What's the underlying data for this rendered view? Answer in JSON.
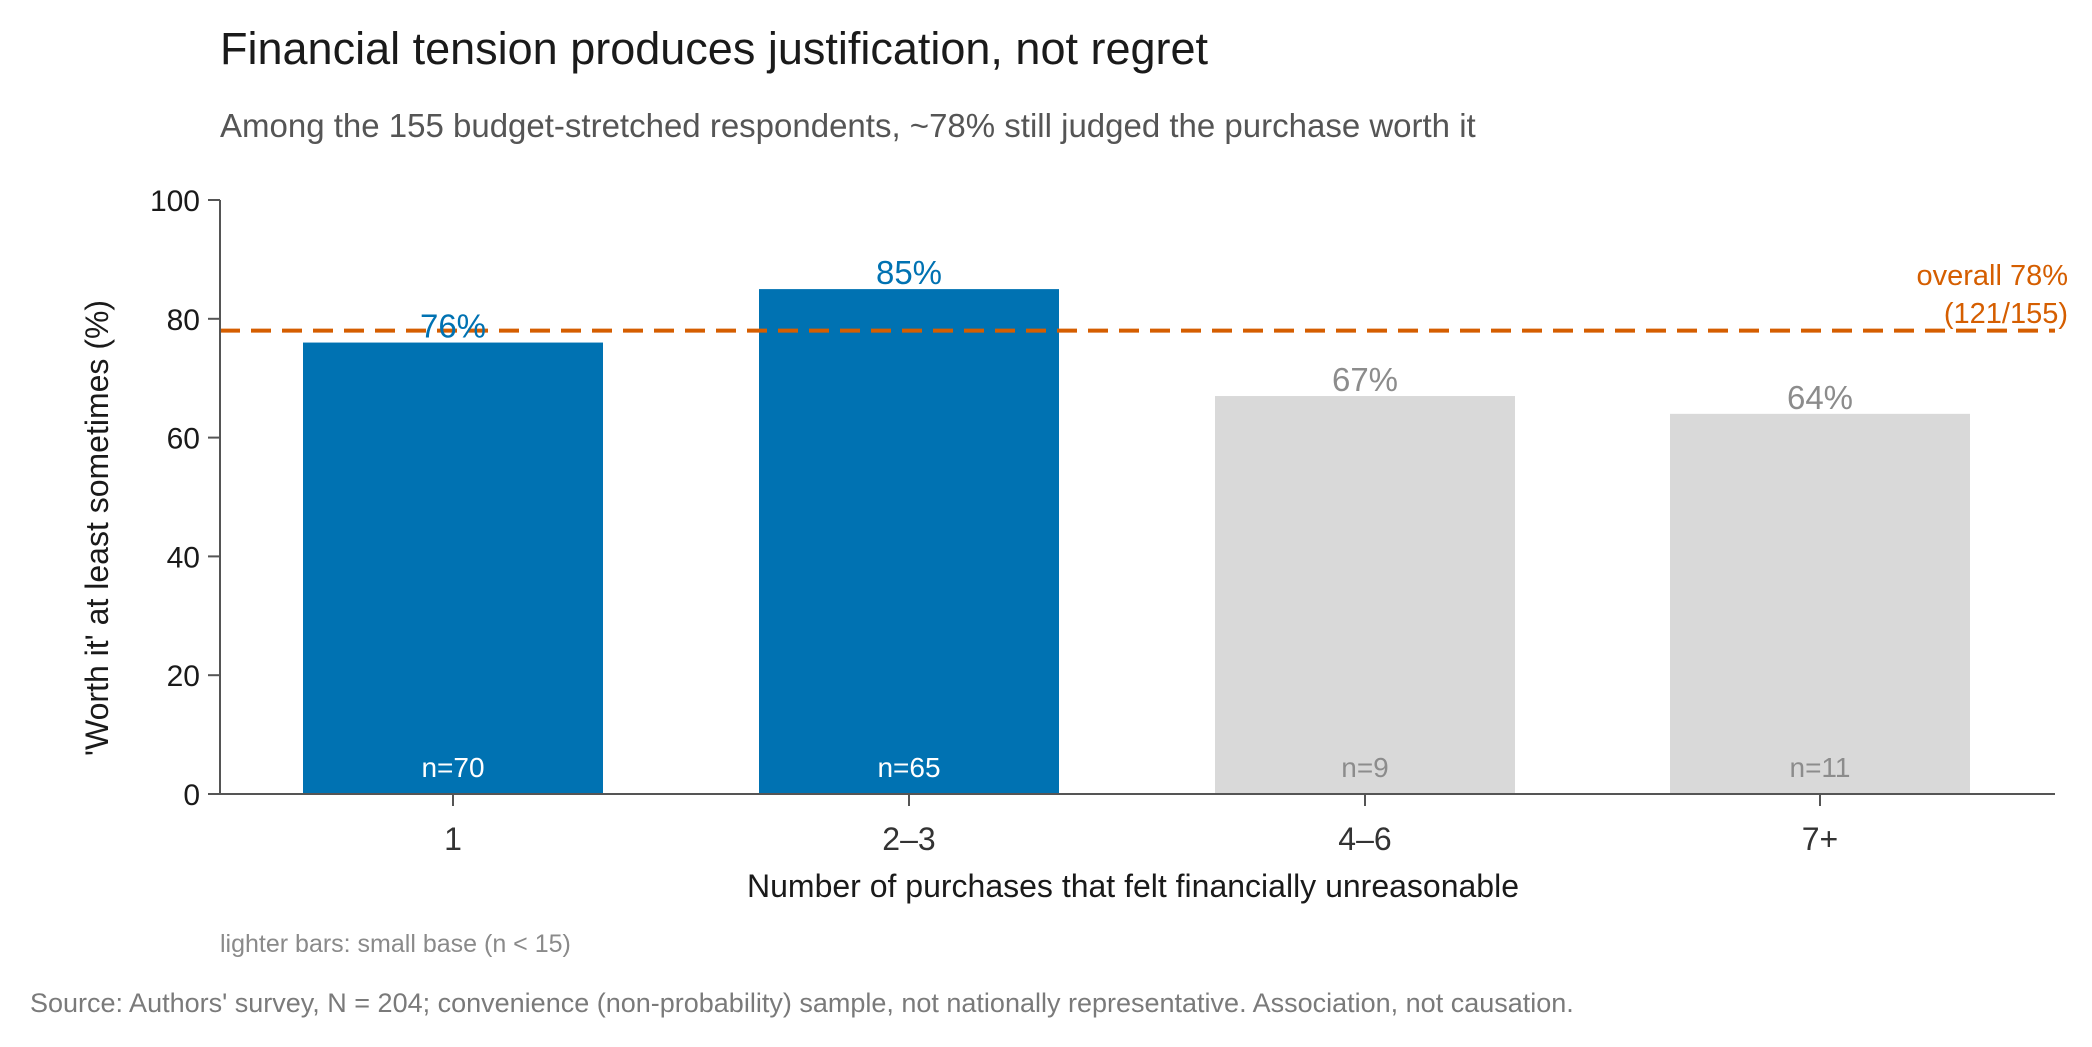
{
  "colors": {
    "highlight": "#0072b2",
    "muted": "#d9d9d9",
    "muted_text": "#8c8c8c",
    "reference": "#d55e00",
    "axis": "#555555"
  },
  "chart_data": {
    "type": "bar",
    "title": "Financial tension produces justification, not regret",
    "subtitle": "Among the 155 budget-stretched respondents, ~78% still judged the purchase worth it",
    "xlabel": "Number of purchases that felt financially unreasonable",
    "ylabel": "'Worth it' at least sometimes (%)",
    "ylim": [
      0,
      100
    ],
    "yticks": [
      0,
      20,
      40,
      60,
      80,
      100
    ],
    "categories": [
      "1",
      "2–3",
      "4–6",
      "7+"
    ],
    "values": [
      76,
      85,
      67,
      64
    ],
    "value_labels": [
      "76%",
      "85%",
      "67%",
      "64%"
    ],
    "n_labels": [
      "n=70",
      "n=65",
      "n=9",
      "n=11"
    ],
    "small_base": [
      false,
      false,
      true,
      true
    ],
    "reference_line": {
      "value": 78,
      "label_line1": "overall 78%",
      "label_line2": "(121/155)",
      "style": "dashed"
    },
    "note": "lighter bars: small base (n < 15)",
    "source": "Source: Authors' survey, N = 204; convenience (non-probability) sample, not nationally representative.  Association, not causation.",
    "grid": false
  }
}
